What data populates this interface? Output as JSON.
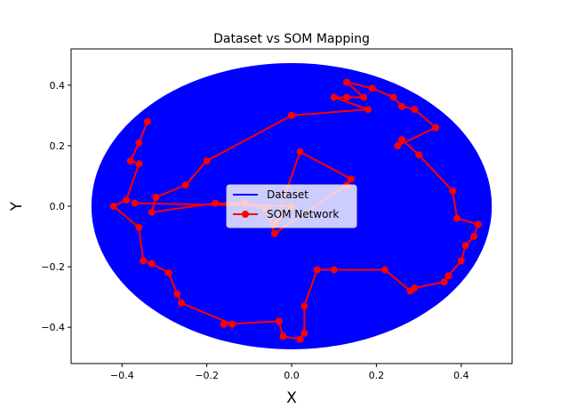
{
  "chart_data": {
    "type": "line",
    "title": "Dataset vs SOM Mapping",
    "xlabel": "X",
    "ylabel": "Y",
    "xlim": [
      -0.52,
      0.52
    ],
    "ylim": [
      -0.52,
      0.52
    ],
    "xticks": [
      -0.4,
      -0.2,
      0.0,
      0.2,
      0.4
    ],
    "yticks": [
      -0.4,
      -0.2,
      0.0,
      0.2,
      0.4
    ],
    "xtick_labels": [
      "−0.4",
      "−0.2",
      "0.0",
      "0.2",
      "0.4"
    ],
    "ytick_labels": [
      "−0.4",
      "−0.2",
      "0.0",
      "0.2",
      "0.4"
    ],
    "grid": false,
    "legend_position": "center",
    "series": [
      {
        "name": "Dataset",
        "color": "#0000ff",
        "region": {
          "shape": "ellipse",
          "center": [
            0.0,
            0.0
          ],
          "rx": 0.47,
          "ry": 0.47
        }
      },
      {
        "name": "SOM Network",
        "color": "#ff0000",
        "marker": "circle",
        "points": [
          [
            -0.34,
            0.28
          ],
          [
            -0.36,
            0.21
          ],
          [
            -0.38,
            0.15
          ],
          [
            -0.36,
            0.14
          ],
          [
            -0.39,
            0.02
          ],
          [
            -0.42,
            0.0
          ],
          [
            -0.36,
            -0.07
          ],
          [
            -0.35,
            -0.18
          ],
          [
            -0.33,
            -0.19
          ],
          [
            -0.29,
            -0.22
          ],
          [
            -0.27,
            -0.29
          ],
          [
            -0.26,
            -0.32
          ],
          [
            -0.14,
            -0.39
          ],
          [
            -0.16,
            -0.39
          ],
          [
            -0.03,
            -0.38
          ],
          [
            -0.02,
            -0.43
          ],
          [
            0.02,
            -0.44
          ],
          [
            0.03,
            -0.42
          ],
          [
            0.03,
            -0.33
          ],
          [
            0.06,
            -0.21
          ],
          [
            0.1,
            -0.21
          ],
          [
            0.22,
            -0.21
          ],
          [
            0.28,
            -0.28
          ],
          [
            0.29,
            -0.27
          ],
          [
            0.36,
            -0.25
          ],
          [
            0.37,
            -0.23
          ],
          [
            0.4,
            -0.18
          ],
          [
            0.41,
            -0.13
          ],
          [
            0.43,
            -0.1
          ],
          [
            0.44,
            -0.06
          ],
          [
            0.39,
            -0.04
          ],
          [
            0.38,
            0.05
          ],
          [
            0.3,
            0.17
          ],
          [
            0.26,
            0.22
          ],
          [
            0.25,
            0.2
          ],
          [
            0.34,
            0.26
          ],
          [
            0.29,
            0.32
          ],
          [
            0.26,
            0.33
          ],
          [
            0.24,
            0.36
          ],
          [
            0.19,
            0.39
          ],
          [
            0.13,
            0.41
          ],
          [
            0.17,
            0.36
          ],
          [
            0.13,
            0.36
          ],
          [
            0.1,
            0.36
          ],
          [
            0.18,
            0.32
          ],
          [
            0.0,
            0.3
          ],
          [
            -0.2,
            0.15
          ],
          [
            -0.25,
            0.07
          ],
          [
            -0.32,
            0.03
          ],
          [
            -0.33,
            -0.02
          ],
          [
            -0.18,
            0.01
          ],
          [
            -0.11,
            0.01
          ],
          [
            -0.06,
            -0.01
          ],
          [
            -0.04,
            -0.09
          ],
          [
            0.13,
            0.07
          ],
          [
            0.14,
            0.09
          ],
          [
            0.02,
            0.18
          ],
          [
            -0.04,
            -0.06
          ],
          [
            0.0,
            0.0
          ],
          [
            -0.37,
            0.01
          ]
        ]
      }
    ]
  }
}
